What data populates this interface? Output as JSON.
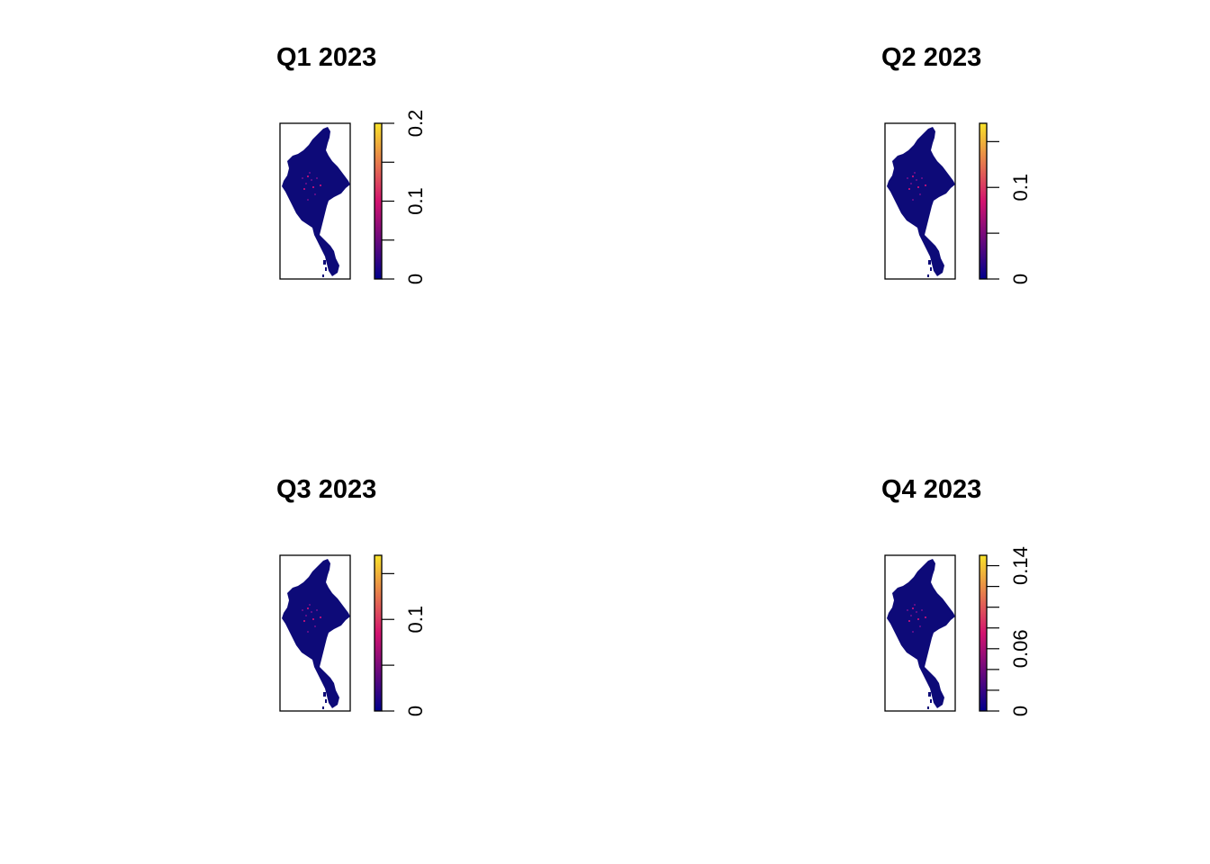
{
  "panels": [
    {
      "title": "Q1 2023",
      "legend": {
        "min": 0,
        "max": 0.2,
        "ticks": [
          0,
          0.05,
          0.1,
          0.15,
          0.2
        ],
        "tick_labels": [
          "0",
          "",
          "0.1",
          "",
          "0.2"
        ]
      }
    },
    {
      "title": "Q2 2023",
      "legend": {
        "min": 0,
        "max": 0.17,
        "ticks": [
          0,
          0.05,
          0.1,
          0.15
        ],
        "tick_labels": [
          "0",
          "",
          "0.1",
          ""
        ]
      }
    },
    {
      "title": "Q3 2023",
      "legend": {
        "min": 0,
        "max": 0.17,
        "ticks": [
          0,
          0.05,
          0.1,
          0.15
        ],
        "tick_labels": [
          "0",
          "",
          "0.1",
          ""
        ]
      }
    },
    {
      "title": "Q4 2023",
      "legend": {
        "min": 0,
        "max": 0.15,
        "ticks": [
          0,
          0.02,
          0.04,
          0.06,
          0.08,
          0.1,
          0.12,
          0.14
        ],
        "tick_labels": [
          "0",
          "",
          "",
          "0.06",
          "",
          "",
          "",
          "0.14"
        ]
      }
    }
  ],
  "colors": {
    "base": "#0d0a78",
    "low": "#00008b",
    "mid": "#d3136f",
    "high": "#f9e32a",
    "frame": "#000000"
  }
}
